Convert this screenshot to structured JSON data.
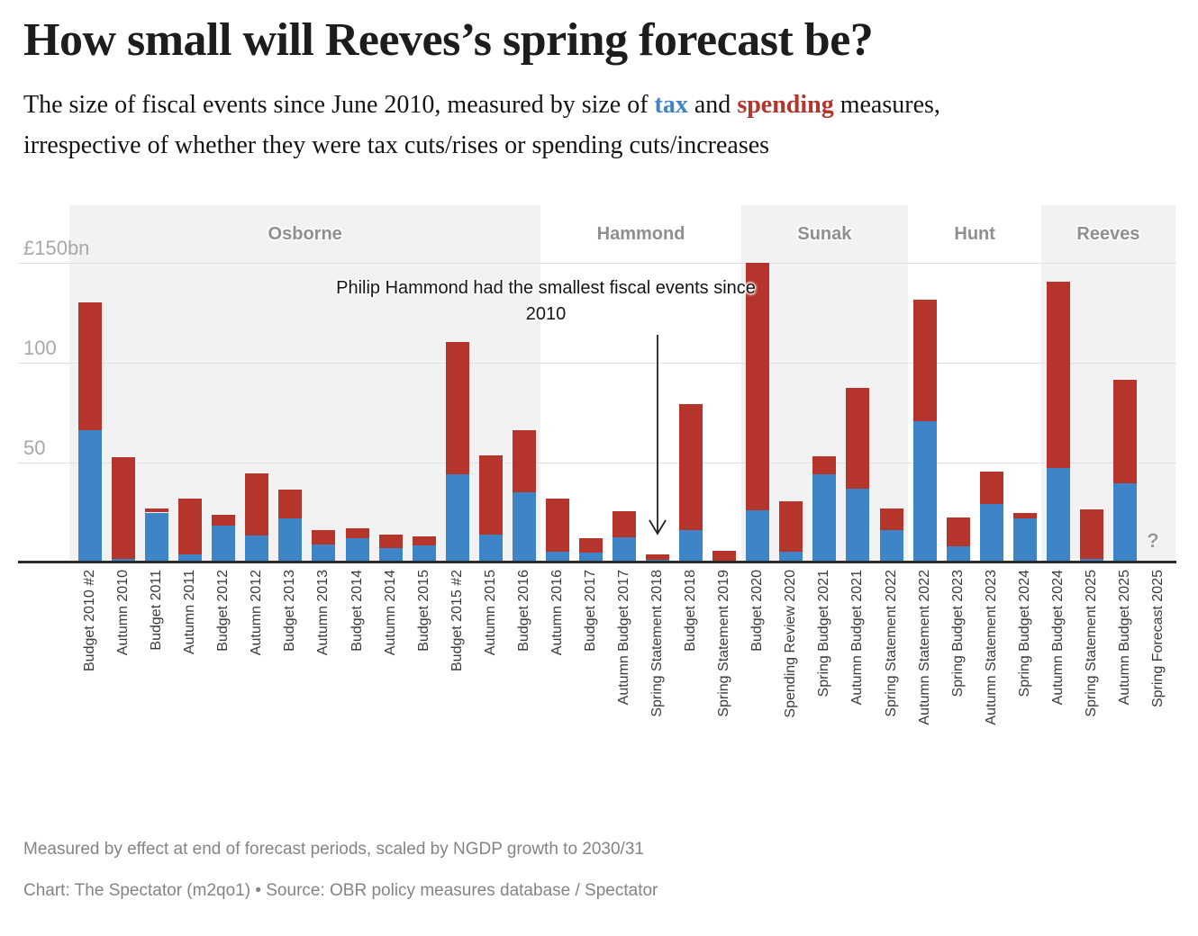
{
  "title": "How small will Reeves’s spring forecast be?",
  "subtitle": {
    "line1": {
      "pre": "The size of fiscal events since June 2010, measured by size of ",
      "tax": "tax",
      "between": " and ",
      "spending": "spending",
      "post": " measures,"
    },
    "line2": "irrespective of whether they were tax cuts/rises or spending cuts/increases"
  },
  "annotation": {
    "line1": "Philip Hammond had the smallest fiscal events since",
    "line2": "2010",
    "arrow_points_to": "Spring Statement 2018"
  },
  "footer": {
    "note": "Measured by effect at end of forecast periods, scaled by NGDP growth to 2030/31",
    "byline": "Chart: The Spectator (m2qo1) • Source: OBR policy measures database / Spectator"
  },
  "colors": {
    "tax": "#3d85c6",
    "spending": "#b5342b",
    "band_background": "#f2f2f2",
    "gridline": "#e0e0e0",
    "axis": "#2a2a2a"
  },
  "chart_data": {
    "type": "bar",
    "stacked": true,
    "title": "How small will Reeves’s spring forecast be?",
    "unit": "£bn",
    "xlabel": "",
    "ylabel": "",
    "ylim": [
      0,
      178
    ],
    "grid": true,
    "legend_position": "none (series colors referenced by subtitle words tax/spending)",
    "y_axis": {
      "ticks": [
        {
          "value": 150,
          "label": "£150bn"
        },
        {
          "value": 100,
          "label": "100"
        },
        {
          "value": 50,
          "label": "50"
        }
      ]
    },
    "categories": [
      "Budget 2010 #2",
      "Autumn 2010",
      "Budget 2011",
      "Autumn 2011",
      "Budget 2012",
      "Autumn 2012",
      "Budget 2013",
      "Autumn 2013",
      "Budget 2014",
      "Autumn 2014",
      "Budget 2015",
      "Budget 2015 #2",
      "Autumn 2015",
      "Budget 2016",
      "Autumn 2016",
      "Budget 2017",
      "Autumn Budget 2017",
      "Spring Statement 2018",
      "Budget 2018",
      "Spring Statement 2019",
      "Budget 2020",
      "Spending Review 2020",
      "Spring Budget 2021",
      "Autumn Budget 2021",
      "Spring Statement 2022",
      "Autumn Statement 2022",
      "Spring Budget 2023",
      "Autumn Statement 2023",
      "Spring Budget 2024",
      "Autumn Budget 2024",
      "Spring Statement 2025",
      "Autumn Budget 2025",
      "Spring Forecast 2025"
    ],
    "series": [
      {
        "name": "tax",
        "values": [
          66,
          2,
          25,
          4,
          18.5,
          13.5,
          22,
          9,
          12,
          7,
          8.5,
          44,
          14,
          35,
          5.5,
          5,
          12.5,
          1.5,
          16,
          1,
          26,
          5.5,
          44,
          37,
          16,
          70.5,
          8,
          29.5,
          22,
          47.5,
          2,
          39.5,
          0
        ]
      },
      {
        "name": "spending",
        "values": [
          64,
          50.5,
          2,
          28,
          5.5,
          31,
          14.5,
          7,
          5,
          7,
          4.5,
          66.5,
          39.5,
          31,
          26.5,
          7,
          13,
          2.5,
          63.5,
          5,
          124,
          25,
          9,
          50.5,
          11,
          61,
          14.5,
          16,
          3,
          93,
          24.5,
          52,
          0
        ]
      }
    ],
    "chancellor_bands": [
      {
        "label": "Osborne",
        "from_index": 0,
        "to_index": 13,
        "shaded": true
      },
      {
        "label": "Hammond",
        "from_index": 14,
        "to_index": 19,
        "shaded": false
      },
      {
        "label": "Sunak",
        "from_index": 20,
        "to_index": 24,
        "shaded": true
      },
      {
        "label": "Hunt",
        "from_index": 25,
        "to_index": 28,
        "shaded": false
      },
      {
        "label": "Reeves",
        "from_index": 29,
        "to_index": 32,
        "shaded": true
      }
    ],
    "no_data_marker": {
      "category": "Spring Forecast 2025",
      "symbol": "?"
    }
  }
}
